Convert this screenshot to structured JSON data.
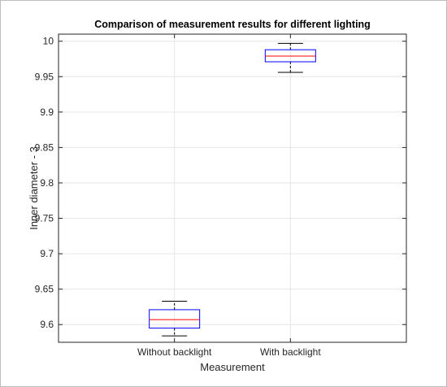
{
  "chart_data": {
    "type": "box",
    "title": "Comparison of measurement results for different lighting",
    "xlabel": "Measurement",
    "ylabel": "Inner diameter - 3",
    "categories": [
      "Without backlight",
      "With backlight"
    ],
    "ylim": [
      9.575,
      10.01
    ],
    "yticks": [
      "9.6",
      "9.65",
      "9.7",
      "9.75",
      "9.8",
      "9.85",
      "9.9",
      "9.95",
      "10"
    ],
    "boxes": [
      {
        "category": "Without backlight",
        "min": 9.584,
        "q1": 9.595,
        "median": 9.607,
        "q3": 9.621,
        "max": 9.633
      },
      {
        "category": "With backlight",
        "min": 9.956,
        "q1": 9.971,
        "median": 9.979,
        "q3": 9.988,
        "max": 9.997
      }
    ],
    "grid": true,
    "legend": "none",
    "colors": {
      "box": "#0000ff",
      "median": "#ff0000",
      "whisker": "#000000",
      "grid": "#e6e6e6"
    }
  }
}
